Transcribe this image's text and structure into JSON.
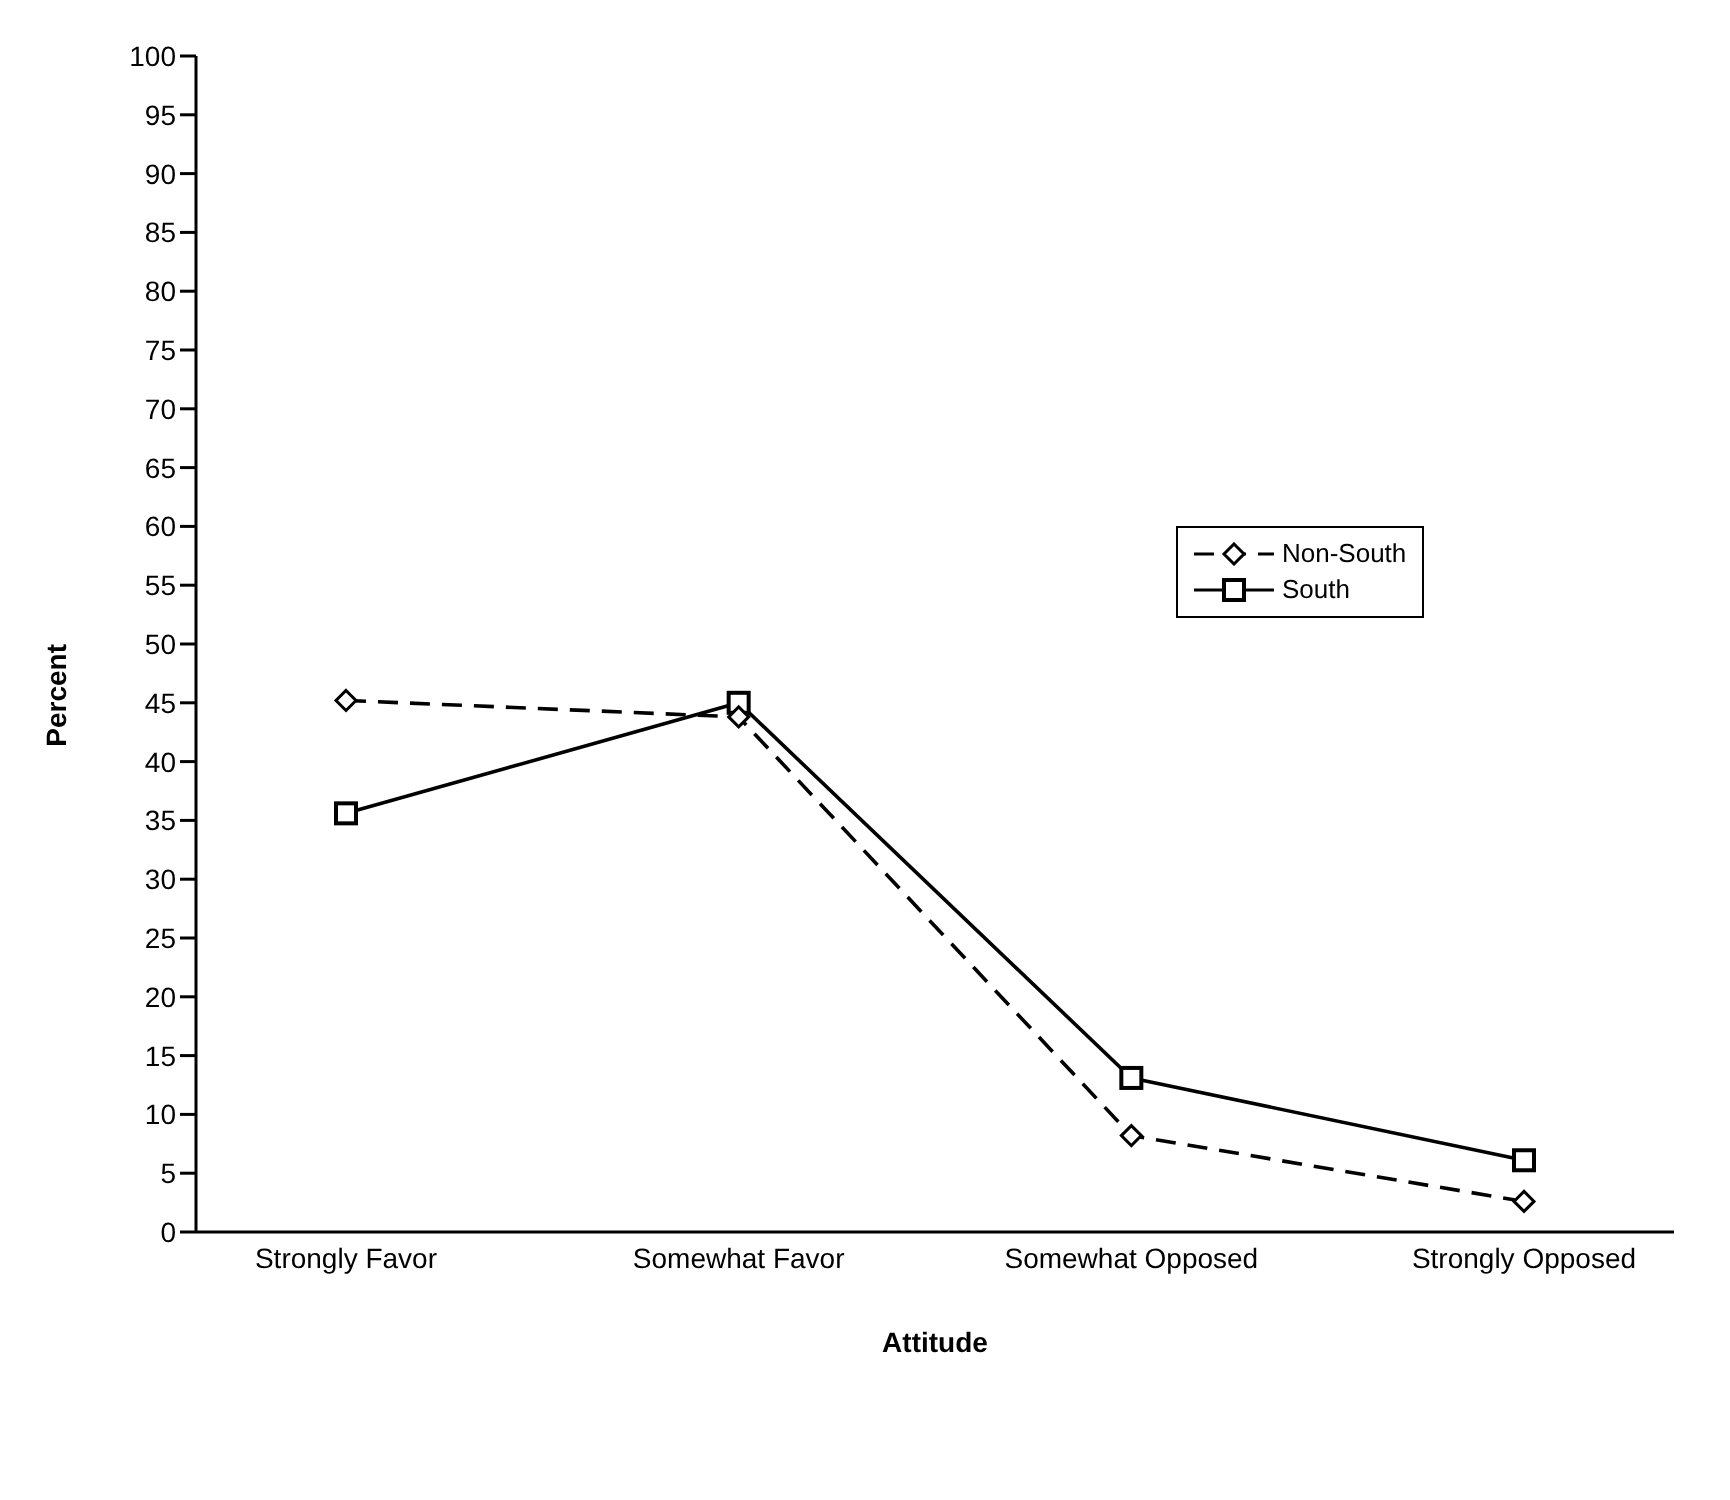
{
  "chart_data": {
    "type": "line",
    "xlabel": "Attitude",
    "ylabel": "Percent",
    "categories": [
      "Strongly Favor",
      "Somewhat Favor",
      "Somewhat Opposed",
      "Strongly Opposed"
    ],
    "series": [
      {
        "name": "Non-South",
        "color": "#000000",
        "values": [
          45.2,
          43.8,
          8.2,
          2.6
        ],
        "marker": "diamond",
        "line_style": "dashed"
      },
      {
        "name": "South",
        "color": "#000000",
        "values": [
          35.6,
          45.0,
          13.1,
          6.1
        ],
        "marker": "square",
        "line_style": "solid"
      }
    ],
    "ylim": [
      0,
      100
    ],
    "yticks": [
      0,
      5,
      10,
      15,
      20,
      25,
      30,
      35,
      40,
      45,
      50,
      55,
      60,
      65,
      70,
      75,
      80,
      85,
      90,
      95,
      100
    ],
    "grid": false,
    "legend": "right"
  }
}
